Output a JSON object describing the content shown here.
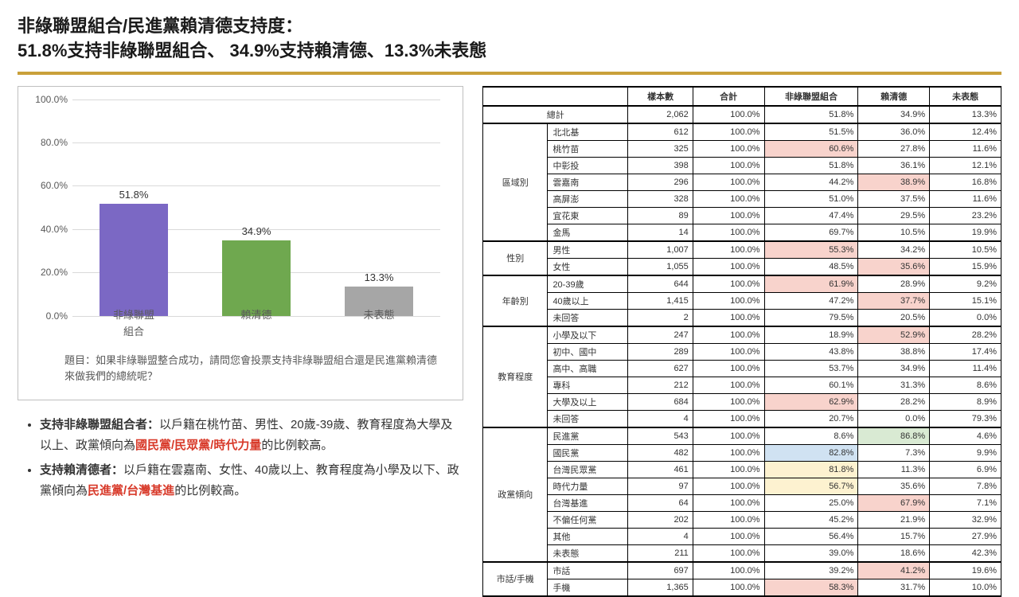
{
  "title_line1": "非綠聯盟組合/民進黨賴清德支持度：",
  "title_line2": "51.8%支持非綠聯盟組合、 34.9%支持賴清德、13.3%未表態",
  "chart": {
    "type": "bar",
    "ylim": [
      0,
      100
    ],
    "ytick_step": 20,
    "y_format_suffix": "%",
    "grid_color": "#d9d9d9",
    "axis_label_color": "#595959",
    "label_fontsize": 13,
    "bars": [
      {
        "label_top": "非綠聯盟",
        "label_sub": "組合",
        "value": 51.8,
        "display": "51.8%",
        "color": "#7b68c4"
      },
      {
        "label_top": "賴清德",
        "label_sub": "",
        "value": 34.9,
        "display": "34.9%",
        "color": "#6fa84f"
      },
      {
        "label_top": "未表態",
        "label_sub": "",
        "value": 13.3,
        "display": "13.3%",
        "color": "#a6a6a6"
      }
    ],
    "question": "題目：如果非綠聯盟整合成功，請問您會投票支持非綠聯盟組合還是民進黨賴清德來做我們的總統呢？"
  },
  "bullets": [
    {
      "lead": "支持非綠聯盟組合者：",
      "pre": "以戶籍在桃竹苗、男性、20歲-39歲、教育程度為大學及以上、政黨傾向為",
      "hl": "國民黨/民眾黨/時代力量",
      "post": "的比例較高。"
    },
    {
      "lead": "支持賴清德者：",
      "pre": "以戶籍在雲嘉南、女性、40歲以上、教育程度為小學及以下、政黨傾向為",
      "hl": "民進黨/台灣基進",
      "post": "的比例較高。"
    }
  ],
  "table": {
    "columns": [
      "",
      "",
      "樣本數",
      "合計",
      "非綠聯盟組合",
      "賴清德",
      "未表態"
    ],
    "col_widths": [
      "52px",
      "72px",
      "58px",
      "64px",
      "84px",
      "64px",
      "64px"
    ],
    "highlight_colors": {
      "pink": "#f8d3cc",
      "green": "#d9ead3",
      "blue": "#d0e2f2",
      "yellow": "#fdf2d0"
    },
    "total_row": {
      "label": "總計",
      "cells": [
        "2,062",
        "100.0%",
        "51.8%",
        "34.9%",
        "13.3%"
      ]
    },
    "groups": [
      {
        "cat": "區域別",
        "rows": [
          {
            "lab": "北北基",
            "c": [
              "612",
              "100.0%",
              "51.5%",
              "36.0%",
              "12.4%"
            ]
          },
          {
            "lab": "桃竹苗",
            "c": [
              "325",
              "100.0%",
              "60.6%",
              "27.8%",
              "11.6%"
            ],
            "h": {
              "2": "pink"
            }
          },
          {
            "lab": "中彰投",
            "c": [
              "398",
              "100.0%",
              "51.8%",
              "36.1%",
              "12.1%"
            ]
          },
          {
            "lab": "雲嘉南",
            "c": [
              "296",
              "100.0%",
              "44.2%",
              "38.9%",
              "16.8%"
            ],
            "h": {
              "3": "pink"
            }
          },
          {
            "lab": "高屏澎",
            "c": [
              "328",
              "100.0%",
              "51.0%",
              "37.5%",
              "11.6%"
            ]
          },
          {
            "lab": "宜花東",
            "c": [
              "89",
              "100.0%",
              "47.4%",
              "29.5%",
              "23.2%"
            ]
          },
          {
            "lab": "金馬",
            "c": [
              "14",
              "100.0%",
              "69.7%",
              "10.5%",
              "19.9%"
            ]
          }
        ]
      },
      {
        "cat": "性別",
        "rows": [
          {
            "lab": "男性",
            "c": [
              "1,007",
              "100.0%",
              "55.3%",
              "34.2%",
              "10.5%"
            ],
            "h": {
              "2": "pink"
            }
          },
          {
            "lab": "女性",
            "c": [
              "1,055",
              "100.0%",
              "48.5%",
              "35.6%",
              "15.9%"
            ],
            "h": {
              "3": "pink"
            }
          }
        ]
      },
      {
        "cat": "年齡別",
        "rows": [
          {
            "lab": "20-39歲",
            "c": [
              "644",
              "100.0%",
              "61.9%",
              "28.9%",
              "9.2%"
            ],
            "h": {
              "2": "pink"
            }
          },
          {
            "lab": "40歲以上",
            "c": [
              "1,415",
              "100.0%",
              "47.2%",
              "37.7%",
              "15.1%"
            ],
            "h": {
              "3": "pink"
            }
          },
          {
            "lab": "未回答",
            "c": [
              "2",
              "100.0%",
              "79.5%",
              "20.5%",
              "0.0%"
            ]
          }
        ]
      },
      {
        "cat": "教育程度",
        "rows": [
          {
            "lab": "小學及以下",
            "c": [
              "247",
              "100.0%",
              "18.9%",
              "52.9%",
              "28.2%"
            ],
            "h": {
              "3": "pink"
            }
          },
          {
            "lab": "初中、國中",
            "c": [
              "289",
              "100.0%",
              "43.8%",
              "38.8%",
              "17.4%"
            ]
          },
          {
            "lab": "高中、高職",
            "c": [
              "627",
              "100.0%",
              "53.7%",
              "34.9%",
              "11.4%"
            ]
          },
          {
            "lab": "專科",
            "c": [
              "212",
              "100.0%",
              "60.1%",
              "31.3%",
              "8.6%"
            ]
          },
          {
            "lab": "大學及以上",
            "c": [
              "684",
              "100.0%",
              "62.9%",
              "28.2%",
              "8.9%"
            ],
            "h": {
              "2": "pink"
            }
          },
          {
            "lab": "未回答",
            "c": [
              "4",
              "100.0%",
              "20.7%",
              "0.0%",
              "79.3%"
            ]
          }
        ]
      },
      {
        "cat": "政黨傾向",
        "rows": [
          {
            "lab": "民進黨",
            "c": [
              "543",
              "100.0%",
              "8.6%",
              "86.8%",
              "4.6%"
            ],
            "h": {
              "3": "green"
            }
          },
          {
            "lab": "國民黨",
            "c": [
              "482",
              "100.0%",
              "82.8%",
              "7.3%",
              "9.9%"
            ],
            "h": {
              "2": "blue"
            }
          },
          {
            "lab": "台灣民眾黨",
            "c": [
              "461",
              "100.0%",
              "81.8%",
              "11.3%",
              "6.9%"
            ],
            "h": {
              "2": "yellow"
            }
          },
          {
            "lab": "時代力量",
            "c": [
              "97",
              "100.0%",
              "56.7%",
              "35.6%",
              "7.8%"
            ],
            "h": {
              "2": "yellow"
            }
          },
          {
            "lab": "台灣基進",
            "c": [
              "64",
              "100.0%",
              "25.0%",
              "67.9%",
              "7.1%"
            ],
            "h": {
              "3": "pink"
            }
          },
          {
            "lab": "不偏任何黨",
            "c": [
              "202",
              "100.0%",
              "45.2%",
              "21.9%",
              "32.9%"
            ]
          },
          {
            "lab": "其他",
            "c": [
              "4",
              "100.0%",
              "56.4%",
              "15.7%",
              "27.9%"
            ]
          },
          {
            "lab": "未表態",
            "c": [
              "211",
              "100.0%",
              "39.0%",
              "18.6%",
              "42.3%"
            ]
          }
        ]
      },
      {
        "cat": "市話/手機",
        "rows": [
          {
            "lab": "市話",
            "c": [
              "697",
              "100.0%",
              "39.2%",
              "41.2%",
              "19.6%"
            ],
            "h": {
              "3": "pink"
            }
          },
          {
            "lab": "手機",
            "c": [
              "1,365",
              "100.0%",
              "58.3%",
              "31.7%",
              "10.0%"
            ],
            "h": {
              "2": "pink"
            }
          }
        ]
      }
    ]
  }
}
